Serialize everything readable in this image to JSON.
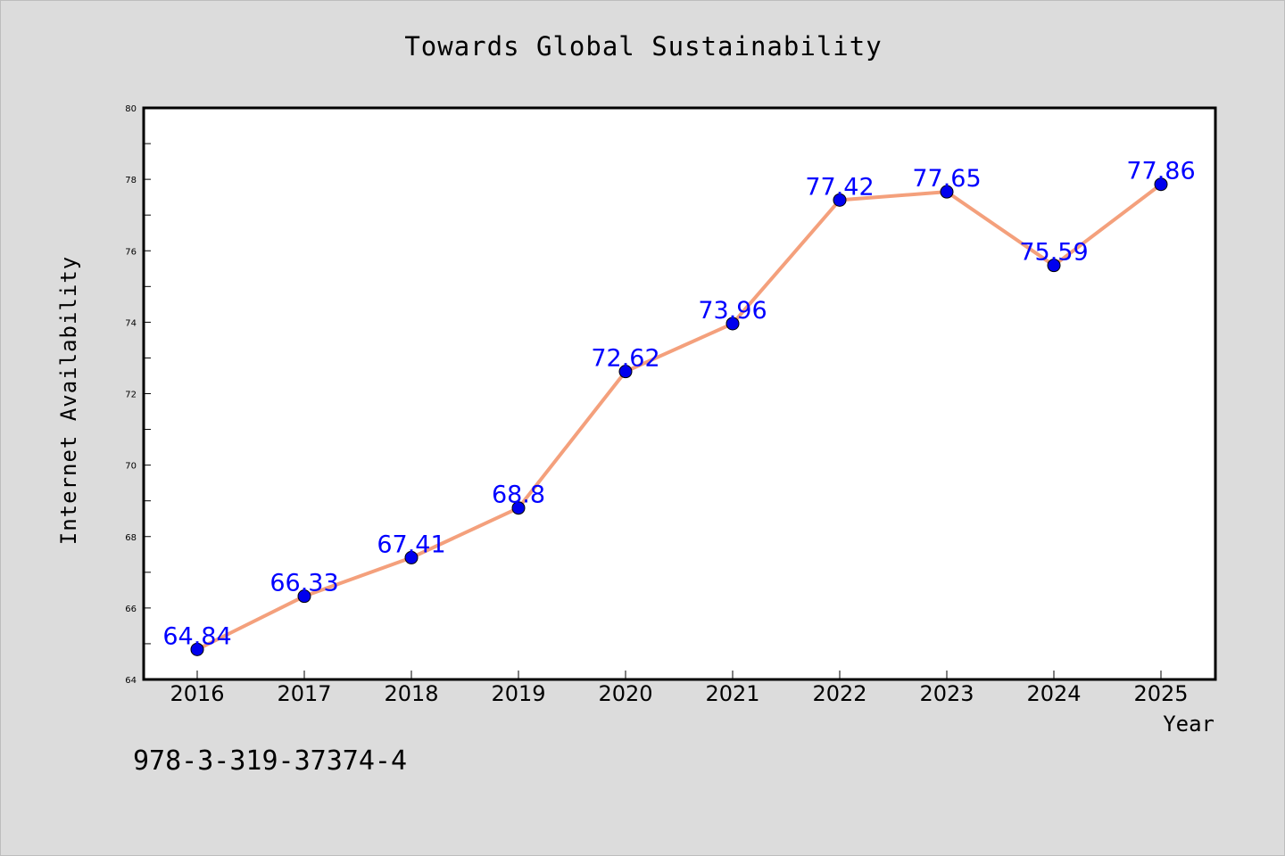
{
  "footnote": "978-3-319-37374-4",
  "colors": {
    "background": "#dcdcdc",
    "plot_area": "#ffffff",
    "line": "#f4a07c",
    "marker": "#0000ee",
    "data_label": "#0000ff"
  },
  "chart_data": {
    "type": "line",
    "title": "Towards Global Sustainability",
    "xlabel": "Year",
    "ylabel": "Internet Availability",
    "x": [
      "2016",
      "2017",
      "2018",
      "2019",
      "2020",
      "2021",
      "2022",
      "2023",
      "2024",
      "2025"
    ],
    "series": [
      {
        "values": [
          64.84,
          66.33,
          67.41,
          68.8,
          72.62,
          73.96,
          77.42,
          77.65,
          75.59,
          77.86
        ],
        "data_labels": [
          "64.84",
          "66.33",
          "67.41",
          "68.8",
          "72.62",
          "73.96",
          "77.42",
          "77.65",
          "75.59",
          "77.86"
        ]
      }
    ],
    "ylim": [
      64,
      80
    ],
    "yticks": [
      "64",
      "66",
      "68",
      "70",
      "72",
      "74",
      "76",
      "78",
      "80"
    ],
    "grid": false,
    "legend": "none",
    "markers": "circle"
  }
}
